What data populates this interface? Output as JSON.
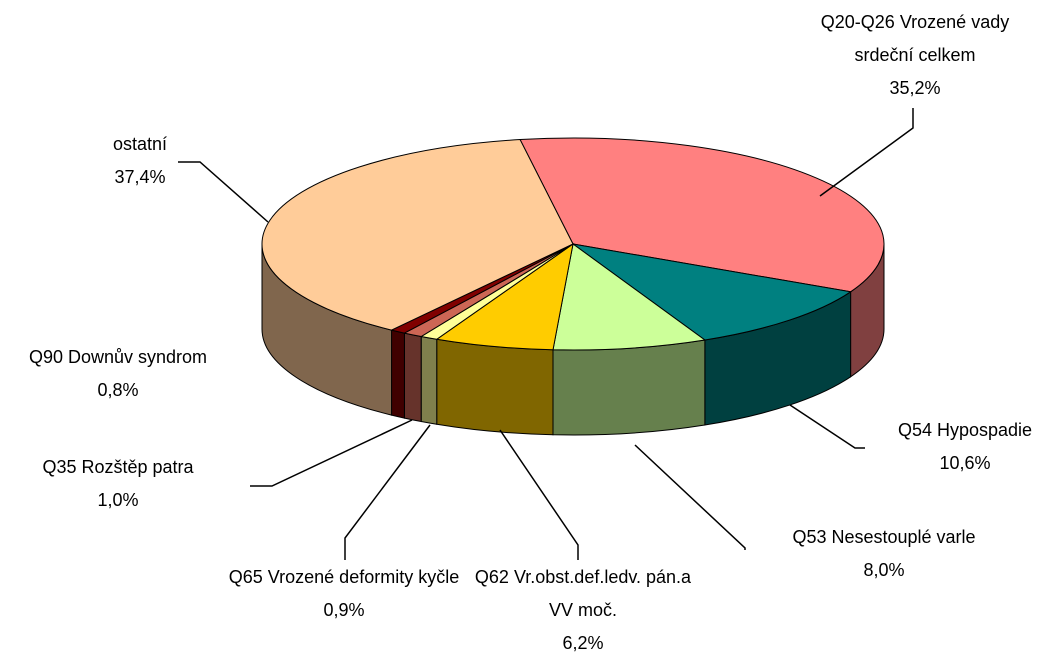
{
  "chart_data": {
    "type": "pie3d",
    "categories": [
      "Q20-Q26 Vrozené vady srdeční celkem",
      "Q54 Hypospadie",
      "Q53 Nesestouplé varle",
      "Q62 Vr.obst.def.ledv. pán.a VV moč.",
      "Q65 Vrozené deformity kyčle",
      "Q35 Rozštěp patra",
      "Q90 Downův syndrom",
      "ostatní"
    ],
    "values": [
      35.2,
      10.6,
      8.0,
      6.2,
      0.9,
      1.0,
      0.8,
      37.4
    ],
    "value_labels": [
      "35,2%",
      "10,6%",
      "8,0%",
      "6,2%",
      "0,9%",
      "1,0%",
      "0,8%",
      "37,4%"
    ],
    "colors": [
      "#FF8080",
      "#008080",
      "#CCFF99",
      "#FFCC00",
      "#FFFF99",
      "#CC6655",
      "#800000",
      "#FFCC99"
    ]
  }
}
